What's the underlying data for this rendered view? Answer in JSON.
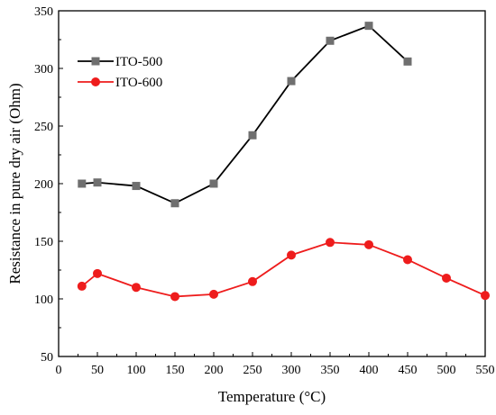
{
  "chart_data": {
    "type": "line",
    "xlabel": "Temperature (°C)",
    "ylabel": "Resistance in pure dry air  (Ohm)",
    "xlim": [
      0,
      550
    ],
    "ylim": [
      50,
      350
    ],
    "xticks": [
      0,
      50,
      100,
      150,
      200,
      250,
      300,
      350,
      400,
      450,
      500,
      550
    ],
    "yticks": [
      50,
      100,
      150,
      200,
      250,
      300,
      350
    ],
    "grid": false,
    "legend_position": "top-left",
    "series": [
      {
        "name": "ITO-500",
        "color": "#000000",
        "marker": "square",
        "marker_color": "#6f6f6f",
        "x": [
          30,
          50,
          100,
          150,
          200,
          250,
          300,
          350,
          400,
          450
        ],
        "y": [
          200,
          201,
          198,
          183,
          200,
          242,
          289,
          324,
          337,
          306
        ]
      },
      {
        "name": "ITO-600",
        "color": "#ee1c1c",
        "marker": "circle",
        "marker_color": "#ee1c1c",
        "x": [
          30,
          50,
          100,
          150,
          200,
          250,
          300,
          350,
          400,
          450,
          500,
          550
        ],
        "y": [
          111,
          122,
          110,
          102,
          104,
          115,
          138,
          149,
          147,
          134,
          118,
          103
        ]
      }
    ]
  }
}
